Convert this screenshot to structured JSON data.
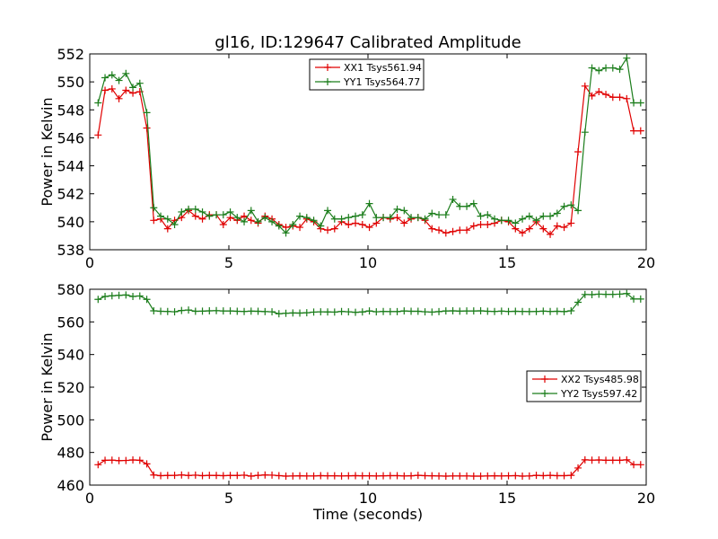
{
  "title": "gl16, ID:129647 Calibrated Amplitude",
  "chart_data": [
    {
      "type": "line",
      "ylabel": "Power in Kelvin",
      "xlabel": "",
      "xlim": [
        0,
        20
      ],
      "ylim": [
        538,
        552
      ],
      "xticks": [
        0,
        5,
        10,
        15,
        20
      ],
      "yticks": [
        538,
        540,
        542,
        544,
        546,
        548,
        550,
        552
      ],
      "legend_position": "top-center",
      "x": [
        0.3,
        0.55,
        0.8,
        1.05,
        1.3,
        1.55,
        1.8,
        2.05,
        2.3,
        2.55,
        2.8,
        3.05,
        3.3,
        3.55,
        3.8,
        4.05,
        4.3,
        4.55,
        4.8,
        5.05,
        5.3,
        5.55,
        5.8,
        6.05,
        6.3,
        6.55,
        6.8,
        7.05,
        7.3,
        7.55,
        7.8,
        8.05,
        8.3,
        8.55,
        8.8,
        9.05,
        9.3,
        9.55,
        9.8,
        10.05,
        10.3,
        10.55,
        10.8,
        11.05,
        11.3,
        11.55,
        11.8,
        12.05,
        12.3,
        12.55,
        12.8,
        13.05,
        13.3,
        13.55,
        13.8,
        14.05,
        14.3,
        14.55,
        14.8,
        15.05,
        15.3,
        15.55,
        15.8,
        16.05,
        16.3,
        16.55,
        16.8,
        17.05,
        17.3,
        17.55,
        17.8,
        18.05,
        18.3,
        18.55,
        18.8,
        19.05,
        19.3,
        19.55,
        19.8
      ],
      "series": [
        {
          "name": "XX1 Tsys561.94",
          "color": "#e00000",
          "values": [
            546.2,
            549.4,
            549.5,
            548.8,
            549.4,
            549.2,
            549.3,
            546.7,
            540.1,
            540.2,
            539.5,
            540.1,
            540.3,
            540.8,
            540.4,
            540.2,
            540.5,
            540.5,
            539.8,
            540.3,
            540.1,
            540.4,
            540.1,
            539.9,
            540.4,
            540.2,
            539.8,
            539.6,
            539.7,
            539.6,
            540.2,
            540.0,
            539.5,
            539.4,
            539.5,
            540.0,
            539.8,
            539.9,
            539.8,
            539.6,
            539.9,
            540.3,
            540.2,
            540.3,
            539.9,
            540.2,
            540.3,
            540.1,
            539.5,
            539.4,
            539.2,
            539.3,
            539.4,
            539.4,
            539.7,
            539.8,
            539.8,
            539.9,
            540.1,
            540.0,
            539.5,
            539.2,
            539.5,
            540.0,
            539.5,
            539.1,
            539.7,
            539.6,
            539.9,
            545.0,
            549.7,
            549.0,
            549.3,
            549.1,
            548.9,
            548.9,
            548.8,
            546.5,
            546.5
          ]
        },
        {
          "name": "YY1 Tsys564.77",
          "color": "#1b7d1b",
          "values": [
            548.5,
            550.3,
            550.5,
            550.1,
            550.6,
            549.6,
            549.9,
            547.8,
            541.0,
            540.4,
            540.2,
            539.8,
            540.7,
            540.9,
            540.9,
            540.7,
            540.4,
            540.5,
            540.5,
            540.7,
            540.3,
            540.0,
            540.8,
            540.0,
            540.3,
            540.0,
            539.7,
            539.2,
            539.8,
            540.4,
            540.3,
            540.1,
            539.7,
            540.8,
            540.2,
            540.2,
            540.3,
            540.4,
            540.5,
            541.3,
            540.3,
            540.3,
            540.3,
            540.9,
            540.8,
            540.3,
            540.3,
            540.2,
            540.6,
            540.5,
            540.5,
            541.6,
            541.1,
            541.1,
            541.3,
            540.4,
            540.5,
            540.2,
            540.1,
            540.1,
            539.9,
            540.2,
            540.4,
            540.1,
            540.4,
            540.4,
            540.6,
            541.1,
            541.2,
            540.8,
            546.4,
            551.0,
            550.8,
            551.0,
            551.0,
            550.9,
            551.7,
            548.5,
            548.5
          ]
        }
      ]
    },
    {
      "type": "line",
      "ylabel": "Power in Kelvin",
      "xlabel": "Time (seconds)",
      "xlim": [
        0,
        20
      ],
      "ylim": [
        460,
        580
      ],
      "xticks": [
        0,
        5,
        10,
        15,
        20
      ],
      "yticks": [
        460,
        480,
        500,
        520,
        540,
        560,
        580
      ],
      "legend_position": "center-right",
      "x": [
        0.3,
        0.55,
        0.8,
        1.05,
        1.3,
        1.55,
        1.8,
        2.05,
        2.3,
        2.55,
        2.8,
        3.05,
        3.3,
        3.55,
        3.8,
        4.05,
        4.3,
        4.55,
        4.8,
        5.05,
        5.3,
        5.55,
        5.8,
        6.05,
        6.3,
        6.55,
        6.8,
        7.05,
        7.3,
        7.55,
        7.8,
        8.05,
        8.3,
        8.55,
        8.8,
        9.05,
        9.3,
        9.55,
        9.8,
        10.05,
        10.3,
        10.55,
        10.8,
        11.05,
        11.3,
        11.55,
        11.8,
        12.05,
        12.3,
        12.55,
        12.8,
        13.05,
        13.3,
        13.55,
        13.8,
        14.05,
        14.3,
        14.55,
        14.8,
        15.05,
        15.3,
        15.55,
        15.8,
        16.05,
        16.3,
        16.55,
        16.8,
        17.05,
        17.3,
        17.55,
        17.8,
        18.05,
        18.3,
        18.55,
        18.8,
        19.05,
        19.3,
        19.55,
        19.8
      ],
      "series": [
        {
          "name": "XX2 Tsys485.98",
          "color": "#e00000",
          "values": [
            472.5,
            475.2,
            475.3,
            475.0,
            475.1,
            475.4,
            475.2,
            473.0,
            466.2,
            465.8,
            465.9,
            466.0,
            466.2,
            465.9,
            466.1,
            465.8,
            466.0,
            465.9,
            465.8,
            465.9,
            465.9,
            466.1,
            465.5,
            466.0,
            466.2,
            466.1,
            465.8,
            465.5,
            465.6,
            465.7,
            465.6,
            465.6,
            465.8,
            465.7,
            465.7,
            465.6,
            465.7,
            465.8,
            465.7,
            465.7,
            465.6,
            465.7,
            465.8,
            465.8,
            465.6,
            465.7,
            466.0,
            465.8,
            465.7,
            465.6,
            465.5,
            465.6,
            465.6,
            465.6,
            465.5,
            465.5,
            465.6,
            465.7,
            465.6,
            465.7,
            465.8,
            465.5,
            465.6,
            466.0,
            465.8,
            466.0,
            465.8,
            465.8,
            466.0,
            470.5,
            475.5,
            475.3,
            475.4,
            475.2,
            475.2,
            475.2,
            475.5,
            472.5,
            472.5
          ]
        },
        {
          "name": "YY2 Tsys597.42",
          "color": "#1b7d1b",
          "values": [
            573.8,
            575.6,
            576.0,
            576.3,
            576.5,
            575.6,
            575.9,
            573.8,
            566.8,
            566.5,
            566.4,
            566.2,
            567.0,
            567.3,
            566.5,
            566.6,
            566.8,
            566.9,
            566.7,
            566.7,
            566.5,
            566.4,
            566.6,
            566.5,
            566.3,
            566.2,
            565.0,
            565.3,
            565.5,
            565.4,
            565.6,
            566.0,
            566.2,
            566.1,
            566.0,
            566.4,
            566.2,
            565.9,
            566.1,
            566.7,
            566.2,
            566.4,
            566.3,
            566.3,
            566.7,
            566.5,
            566.5,
            566.2,
            566.0,
            566.3,
            566.7,
            566.8,
            566.6,
            566.7,
            566.7,
            566.8,
            566.5,
            566.4,
            566.6,
            566.4,
            566.5,
            566.4,
            566.3,
            566.4,
            566.6,
            566.4,
            566.5,
            566.3,
            566.8,
            572.0,
            576.8,
            576.7,
            577.0,
            576.9,
            576.9,
            577.0,
            577.4,
            574.0,
            574.0
          ]
        }
      ]
    }
  ]
}
